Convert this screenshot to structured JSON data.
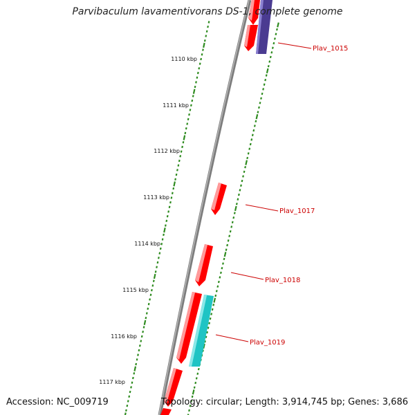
{
  "title": "Parvibaculum lavamentivorans DS-1, complete genome",
  "accession": "Accession: NC_009719",
  "topology": "Topology: circular; Length: 3,914,745 bp; Genes: 3,686",
  "colors": {
    "backbone": "#8a8a8a",
    "tick": "#2e8b1f",
    "forward_gene": "#ff0000",
    "reverse_gene_purple": "#4a3b91",
    "reverse_gene_cyan": "#1fc4c4",
    "label": "#cc0000"
  },
  "scale_labels": [
    "1110 kbp",
    "1111 kbp",
    "1112 kbp",
    "1113 kbp",
    "1114 kbp",
    "1115 kbp",
    "1116 kbp",
    "1117 kbp"
  ],
  "gene_labels": [
    "Plav_1015",
    "Plav_1017",
    "Plav_1018",
    "Plav_1019"
  ]
}
